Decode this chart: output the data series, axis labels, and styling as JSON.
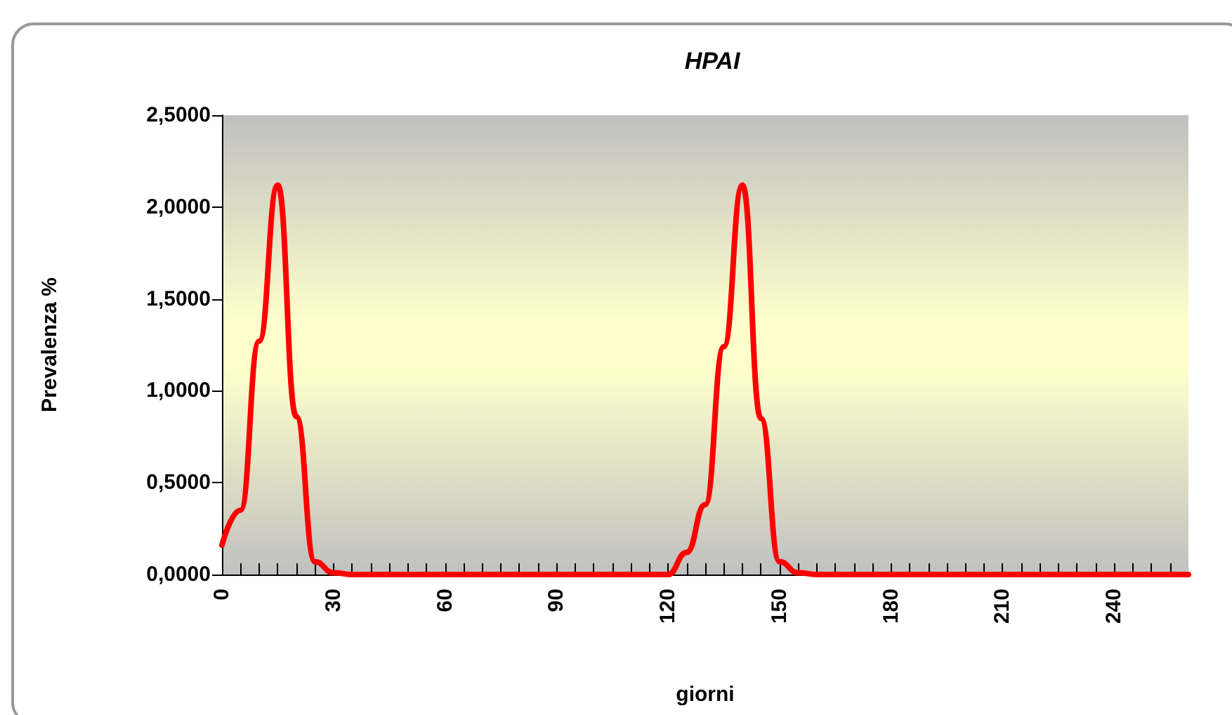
{
  "chart_data": {
    "type": "line",
    "title": "HPAI",
    "xlabel": "giorni",
    "ylabel": "Prevalenza %",
    "x": [
      0,
      5,
      10,
      15,
      20,
      25,
      30,
      35,
      40,
      45,
      50,
      55,
      60,
      65,
      70,
      75,
      80,
      85,
      90,
      95,
      100,
      105,
      110,
      115,
      120,
      125,
      130,
      135,
      140,
      145,
      150,
      155,
      160,
      165,
      170,
      175,
      180,
      185,
      190,
      195,
      200,
      205,
      210,
      215,
      220,
      225,
      230,
      235,
      240,
      245,
      250,
      255,
      260
    ],
    "series": [
      {
        "color": "#ff0000",
        "values": [
          0.16,
          0.35,
          1.27,
          2.12,
          0.86,
          0.07,
          0.01,
          0,
          0,
          0,
          0,
          0,
          0,
          0,
          0,
          0,
          0,
          0,
          0,
          0,
          0,
          0,
          0,
          0,
          0,
          0.12,
          0.38,
          1.24,
          2.12,
          0.85,
          0.07,
          0.01,
          0,
          0,
          0,
          0,
          0,
          0,
          0,
          0,
          0,
          0,
          0,
          0,
          0,
          0,
          0,
          0,
          0,
          0,
          0,
          0,
          0
        ]
      }
    ],
    "xlim": [
      0,
      260
    ],
    "xticks": [
      0,
      {
        "value": 5,
        "label": null
      },
      {
        "value": 10,
        "label": null
      },
      {
        "value": 15,
        "label": null
      },
      {
        "value": 20,
        "label": null
      },
      {
        "value": 25,
        "label": null
      },
      30,
      {
        "value": 35,
        "label": null
      },
      {
        "value": 40,
        "label": null
      },
      {
        "value": 45,
        "label": null
      },
      {
        "value": 50,
        "label": null
      },
      {
        "value": 55,
        "label": null
      },
      60,
      {
        "value": 65,
        "label": null
      },
      {
        "value": 70,
        "label": null
      },
      {
        "value": 75,
        "label": null
      },
      {
        "value": 80,
        "label": null
      },
      {
        "value": 85,
        "label": null
      },
      90,
      {
        "value": 95,
        "label": null
      },
      {
        "value": 100,
        "label": null
      },
      {
        "value": 105,
        "label": null
      },
      {
        "value": 110,
        "label": null
      },
      {
        "value": 115,
        "label": null
      },
      120,
      {
        "value": 125,
        "label": null
      },
      {
        "value": 130,
        "label": null
      },
      {
        "value": 135,
        "label": null
      },
      {
        "value": 140,
        "label": null
      },
      {
        "value": 145,
        "label": null
      },
      150,
      {
        "value": 155,
        "label": null
      },
      {
        "value": 160,
        "label": null
      },
      {
        "value": 165,
        "label": null
      },
      {
        "value": 170,
        "label": null
      },
      {
        "value": 175,
        "label": null
      },
      180,
      {
        "value": 185,
        "label": null
      },
      {
        "value": 190,
        "label": null
      },
      {
        "value": 195,
        "label": null
      },
      {
        "value": 200,
        "label": null
      },
      {
        "value": 205,
        "label": null
      },
      210,
      {
        "value": 215,
        "label": null
      },
      {
        "value": 220,
        "label": null
      },
      {
        "value": 225,
        "label": null
      },
      {
        "value": 230,
        "label": null
      },
      {
        "value": 235,
        "label": null
      },
      240,
      {
        "value": 245,
        "label": null
      },
      {
        "value": 250,
        "label": null
      },
      {
        "value": 255,
        "label": null
      }
    ],
    "ylim": [
      0,
      2.5
    ],
    "yticks": [
      {
        "value": 0,
        "label": "0,0000"
      },
      {
        "value": 0.5,
        "label": "0,5000"
      },
      {
        "value": 1,
        "label": "1,0000"
      },
      {
        "value": 1.5,
        "label": "1,5000"
      },
      {
        "value": 2,
        "label": "2,0000"
      },
      {
        "value": 2.5,
        "label": "2,5000"
      }
    ],
    "grid": false,
    "marker": "none",
    "line_style": "solid"
  }
}
